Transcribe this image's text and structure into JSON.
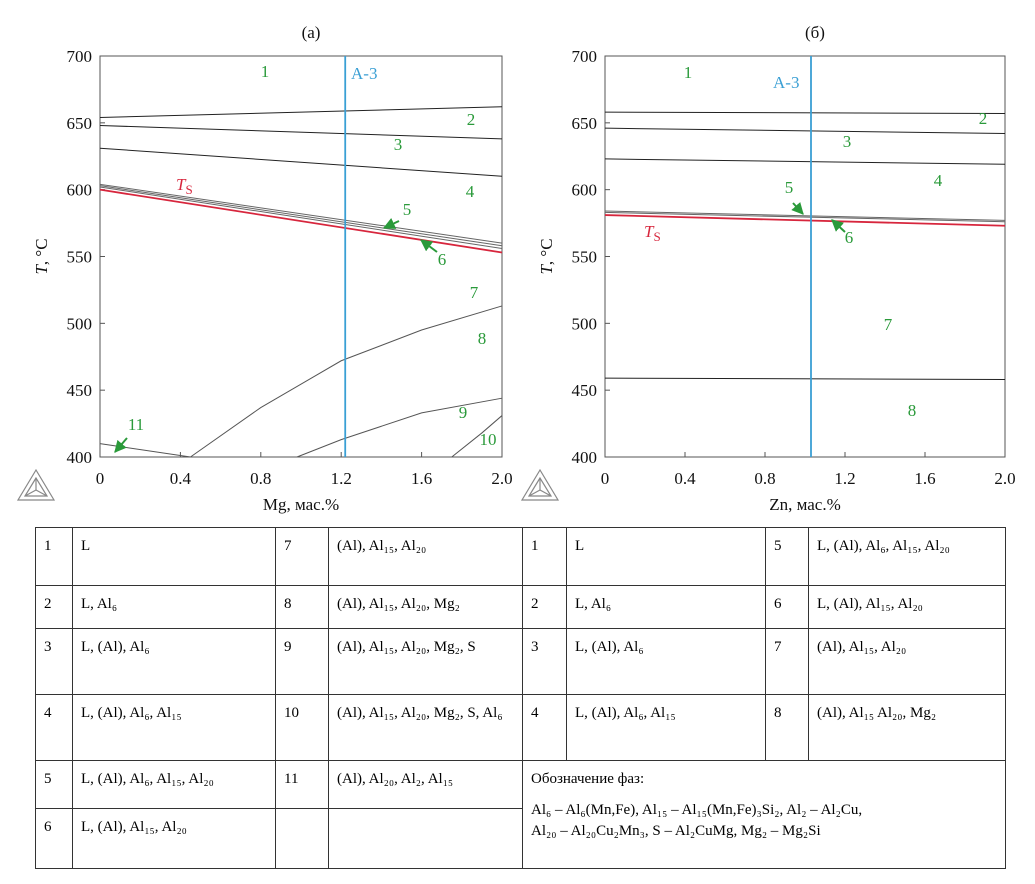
{
  "chart_data": [
    {
      "type": "line",
      "title": "(а)",
      "x_label": "Mg, мас.%",
      "y_label": "T, °C",
      "xlim": [
        0,
        2
      ],
      "xticks": [
        0,
        0.4,
        0.8,
        1.2,
        1.6,
        {
          "value": 2,
          "label": "2.0"
        }
      ],
      "ylim": [
        400,
        700
      ],
      "yticks": [
        400,
        450,
        500,
        550,
        600,
        650,
        700
      ],
      "annotations": [
        "1",
        "2",
        "3",
        "4",
        "5",
        "6",
        "7",
        "8",
        "9",
        "10",
        "11"
      ],
      "annotation_color": "#2a9a3a",
      "series": [
        {
          "color": "#222",
          "x": [
            0,
            2
          ],
          "values": [
            654,
            662
          ]
        },
        {
          "color": "#222",
          "x": [
            0,
            2
          ],
          "values": [
            648,
            638
          ]
        },
        {
          "color": "#222",
          "x": [
            0,
            2
          ],
          "values": [
            631,
            610
          ]
        },
        {
          "color": "#666",
          "x": [
            0,
            2
          ],
          "values": [
            604,
            560
          ]
        },
        {
          "color": "#666",
          "x": [
            0,
            2
          ],
          "values": [
            603,
            558
          ]
        },
        {
          "color": "#666",
          "x": [
            0,
            2
          ],
          "values": [
            602,
            556
          ]
        },
        {
          "name": "TS",
          "color": "#d7263d",
          "x": [
            0,
            2
          ],
          "values": [
            600,
            553
          ]
        },
        {
          "color": "#555",
          "x": [
            0.45,
            0.8,
            1.2,
            1.6,
            2
          ],
          "values": [
            400,
            437,
            472,
            495,
            513
          ]
        },
        {
          "color": "#555",
          "x": [
            0.98,
            1.2,
            1.6,
            2
          ],
          "values": [
            400,
            413,
            433,
            444
          ]
        },
        {
          "color": "#555",
          "x": [
            1.75,
            1.9,
            2
          ],
          "values": [
            400,
            418,
            431
          ]
        },
        {
          "color": "#555",
          "x": [
            0,
            0.45
          ],
          "values": [
            410,
            400
          ]
        },
        {
          "name": "A-3",
          "color": "#3a9fd4",
          "x": [
            1.22,
            1.22
          ],
          "values": [
            400,
            700
          ]
        }
      ]
    },
    {
      "type": "line",
      "title": "(б)",
      "x_label": "Zn, мас.%",
      "y_label": "T, °C",
      "xlim": [
        0,
        2
      ],
      "xticks": [
        0,
        0.4,
        0.8,
        1.2,
        1.6,
        {
          "value": 2,
          "label": "2.0"
        }
      ],
      "ylim": [
        400,
        700
      ],
      "yticks": [
        400,
        450,
        500,
        550,
        600,
        650,
        700
      ],
      "annotations": [
        "1",
        "2",
        "3",
        "4",
        "5",
        "6",
        "7",
        "8"
      ],
      "annotation_color": "#2a9a3a",
      "series": [
        {
          "color": "#222",
          "x": [
            0,
            2
          ],
          "values": [
            658,
            657
          ]
        },
        {
          "color": "#222",
          "x": [
            0,
            2
          ],
          "values": [
            646,
            642
          ]
        },
        {
          "color": "#222",
          "x": [
            0,
            2
          ],
          "values": [
            623,
            619
          ]
        },
        {
          "color": "#666",
          "x": [
            0,
            2
          ],
          "values": [
            584,
            577
          ]
        },
        {
          "color": "#666",
          "x": [
            0,
            2
          ],
          "values": [
            583,
            576
          ]
        },
        {
          "name": "TS",
          "color": "#d7263d",
          "x": [
            0,
            2
          ],
          "values": [
            581,
            573
          ]
        },
        {
          "color": "#222",
          "x": [
            0,
            2
          ],
          "values": [
            459,
            458
          ]
        },
        {
          "name": "A-3",
          "color": "#3a9fd4",
          "x": [
            1.03,
            1.03
          ],
          "values": [
            400,
            700
          ]
        }
      ]
    }
  ],
  "table": {
    "left": [
      [
        "1",
        "L",
        "7",
        "(Al), Al₁₅, Al₂₀"
      ],
      [
        "2",
        "L, Al₆",
        "8",
        "(Al), Al₁₅, Al₂₀, Mg₂"
      ],
      [
        "3",
        "L, (Al), Al₆",
        "9",
        "(Al), Al₁₅, Al₂₀, Mg₂, S"
      ],
      [
        "4",
        "L, (Al), Al₆, Al₁₅",
        "10",
        "(Al), Al₁₅, Al₂₀, Mg₂, S, Al₆"
      ],
      [
        "5",
        "L, (Al), Al₆, Al₁₅, Al₂₀",
        "11",
        "(Al), Al₂₀, Al₂, Al₁₅"
      ],
      [
        "6",
        "L, (Al), Al₁₅, Al₂₀"
      ]
    ],
    "right": [
      [
        "1",
        "L",
        "5",
        "L, (Al), Al₆, Al₁₅, Al₂₀"
      ],
      [
        "2",
        "L, Al₆",
        "6",
        "L, (Al), Al₁₅, Al₂₀"
      ],
      [
        "3",
        "L, (Al), Al₆",
        "7",
        "(Al), Al₁₅, Al₂₀"
      ],
      [
        "4",
        "L, (Al), Al₆, Al₁₅",
        "8",
        "(Al), Al₁₅ Al₂₀, Mg₂"
      ]
    ],
    "note": {
      "title": "Обозначение фаз:",
      "lines": [
        "Al₆ – Al₆(Mn,Fe), Al₁₅ – Al₁₅(Mn,Fe)₃Si₂, Al₂ – Al₂Cu,",
        "Al₂₀ – Al₂₀Cu₂Mn₃, S – Al₂CuMg, Mg₂ – Mg₂Si"
      ]
    }
  }
}
